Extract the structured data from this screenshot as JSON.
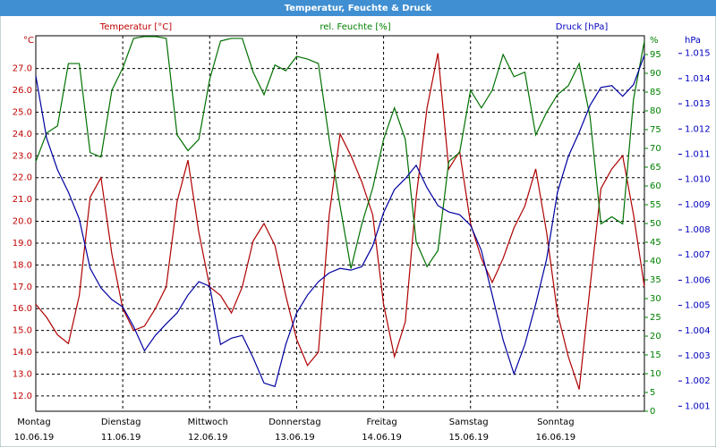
{
  "chart_data": {
    "type": "line",
    "title": "Temperatur, Feuchte & Druck",
    "y_title": "Temperatur [°C]",
    "y2_title": "rel. Feuchte [%]",
    "y3_title": "Druck [hPa]",
    "y_unit": "°C",
    "y2_unit": "%",
    "y3_unit": "hPa",
    "xlim": [
      0,
      7
    ],
    "xticks": [
      {
        "value": 0,
        "label": "Montag",
        "date": "10.06.19"
      },
      {
        "value": 1,
        "label": "Dienstag",
        "date": "11.06.19"
      },
      {
        "value": 2,
        "label": "Mittwoch",
        "date": "12.06.19"
      },
      {
        "value": 3,
        "label": "Donnerstag",
        "date": "13.06.19"
      },
      {
        "value": 4,
        "label": "Freitag",
        "date": "14.06.19"
      },
      {
        "value": 5,
        "label": "Samstag",
        "date": "15.06.19"
      },
      {
        "value": 6,
        "label": "Sonntag",
        "date": "16.06.19"
      }
    ],
    "ylim": [
      11.3,
      28.5
    ],
    "yticks": [
      {
        "value": 12,
        "label": "12.0"
      },
      {
        "value": 13,
        "label": "13.0"
      },
      {
        "value": 14,
        "label": "14.0"
      },
      {
        "value": 15,
        "label": "15.0"
      },
      {
        "value": 16,
        "label": "16.0"
      },
      {
        "value": 17,
        "label": "17.0"
      },
      {
        "value": 18,
        "label": "18.0"
      },
      {
        "value": 19,
        "label": "19.0"
      },
      {
        "value": 20,
        "label": "20.0"
      },
      {
        "value": 21,
        "label": "21.0"
      },
      {
        "value": 22,
        "label": "22.0"
      },
      {
        "value": 23,
        "label": "23.0"
      },
      {
        "value": 24,
        "label": "24.0"
      },
      {
        "value": 25,
        "label": "25.0"
      },
      {
        "value": 26,
        "label": "26.0"
      },
      {
        "value": 27,
        "label": "27.0"
      }
    ],
    "y2lim": [
      0,
      100
    ],
    "y2ticks": [
      0,
      5,
      10,
      15,
      20,
      25,
      30,
      35,
      40,
      45,
      50,
      55,
      60,
      65,
      70,
      75,
      80,
      85,
      90,
      95
    ],
    "y3lim": [
      1.0008,
      1.0157
    ],
    "y3ticks": [
      1.001,
      1.002,
      1.003,
      1.004,
      1.005,
      1.006,
      1.007,
      1.008,
      1.009,
      {
        "value": 1.01,
        "label": "1.010"
      },
      1.011,
      1.012,
      1.013,
      1.014,
      1.015
    ],
    "grid": true,
    "x": [
      0,
      0.125,
      0.25,
      0.375,
      0.5,
      0.625,
      0.75,
      0.875,
      1,
      1.125,
      1.25,
      1.375,
      1.5,
      1.625,
      1.75,
      1.875,
      2,
      2.125,
      2.25,
      2.375,
      2.5,
      2.625,
      2.75,
      2.875,
      3,
      3.125,
      3.25,
      3.375,
      3.5,
      3.625,
      3.75,
      3.875,
      4,
      4.125,
      4.25,
      4.375,
      4.5,
      4.625,
      4.75,
      4.875,
      5,
      5.125,
      5.25,
      5.375,
      5.5,
      5.625,
      5.75,
      5.875,
      6,
      6.125,
      6.25,
      6.375,
      6.5,
      6.625,
      6.75,
      6.875,
      7
    ],
    "series": [
      {
        "axis": "y",
        "color": "#b00000",
        "values": [
          16.2,
          15.6,
          14.8,
          14.4,
          16.6,
          21.1,
          22.0,
          18.5,
          16.0,
          15.0,
          15.2,
          16.0,
          17.0,
          20.9,
          22.8,
          19.5,
          17.0,
          16.6,
          15.8,
          17.0,
          19.1,
          19.9,
          18.9,
          16.6,
          14.6,
          13.4,
          14.0,
          20.3,
          24.0,
          23.0,
          21.8,
          20.3,
          16.2,
          13.8,
          15.4,
          21.1,
          25.2,
          27.7,
          22.4,
          23.2,
          19.9,
          18.3,
          17.2,
          18.3,
          19.7,
          20.7,
          22.4,
          19.5,
          15.8,
          13.8,
          12.3,
          17.0,
          21.5,
          22.4,
          23.0,
          20.3,
          17.0
        ]
      },
      {
        "axis": "y2",
        "color": "#007000",
        "values": [
          66.5,
          74.1,
          76.0,
          92.6,
          92.6,
          68.9,
          67.7,
          85.5,
          91.4,
          99.3,
          99.8,
          99.8,
          99.3,
          73.6,
          69.4,
          72.4,
          88.4,
          98.6,
          99.3,
          99.3,
          90.3,
          84.3,
          92.2,
          90.7,
          94.5,
          93.8,
          92.6,
          72.4,
          54.6,
          38.0,
          49.9,
          59.4,
          72.4,
          80.8,
          72.4,
          45.1,
          38.5,
          42.8,
          66.5,
          68.9,
          85.5,
          80.8,
          85.5,
          95.0,
          89.1,
          90.3,
          73.6,
          79.6,
          84.3,
          86.7,
          92.6,
          78.4,
          49.9,
          51.8,
          49.9,
          83.1,
          98.6
        ]
      },
      {
        "axis": "y3",
        "color": "#0000a0",
        "values": [
          1.01411,
          1.01163,
          1.01038,
          1.00949,
          1.00843,
          1.00647,
          1.00569,
          1.00523,
          1.00494,
          1.00416,
          1.0032,
          1.00381,
          1.00427,
          1.0047,
          1.00541,
          1.00594,
          1.00576,
          1.00345,
          1.0037,
          1.00381,
          1.00292,
          1.00192,
          1.00178,
          1.00345,
          1.0047,
          1.00541,
          1.00594,
          1.00629,
          1.00647,
          1.0064,
          1.00654,
          1.00736,
          1.00868,
          1.0096,
          1.01003,
          1.01056,
          1.00967,
          1.00896,
          1.00871,
          1.0086,
          1.00818,
          1.00718,
          1.00541,
          1.00363,
          1.00228,
          1.00345,
          1.00505,
          1.00683,
          1.00949,
          1.01091,
          1.01187,
          1.01294,
          1.01365,
          1.01372,
          1.0133,
          1.01376,
          1.01493
        ]
      }
    ]
  }
}
